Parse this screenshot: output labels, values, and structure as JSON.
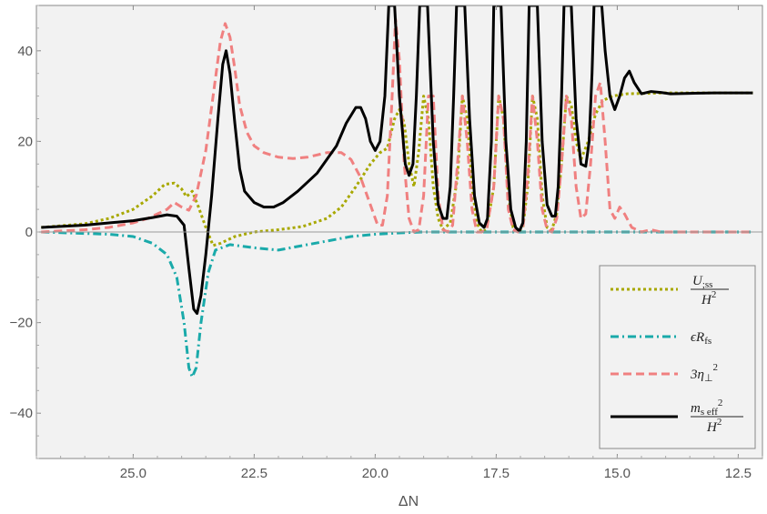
{
  "chart_data": {
    "type": "line",
    "xlabel": "ΔN",
    "ylabel": "",
    "xlim": [
      27.0,
      12.0
    ],
    "ylim": [
      -50,
      50
    ],
    "x_reversed": true,
    "xticks": [
      25.0,
      22.5,
      20.0,
      17.5,
      15.0,
      12.5
    ],
    "xtick_labels": [
      "25.0",
      "22.5",
      "20.0",
      "17.5",
      "15.0",
      "12.5"
    ],
    "yticks": [
      -40,
      -20,
      0,
      20,
      40
    ],
    "ytick_labels": [
      "−40",
      "−20",
      "0",
      "20",
      "40"
    ],
    "legend_position": "bottom-right",
    "background": "#f2f2f2",
    "series": [
      {
        "name": "U;ss / H^2",
        "legend": {
          "num": "U",
          "num_sub": ";ss",
          "den": "H",
          "den_sup": "2"
        },
        "color": "#a8a800",
        "dash": "dotted",
        "points": [
          [
            26.9,
            1.0
          ],
          [
            26.0,
            1.8
          ],
          [
            25.5,
            3.0
          ],
          [
            25.0,
            5.0
          ],
          [
            24.6,
            8.0
          ],
          [
            24.35,
            10.5
          ],
          [
            24.15,
            10.8
          ],
          [
            24.0,
            9.5
          ],
          [
            23.9,
            7.8
          ],
          [
            23.78,
            9.0
          ],
          [
            23.65,
            5.5
          ],
          [
            23.5,
            1.0
          ],
          [
            23.35,
            -3.0
          ],
          [
            23.2,
            -2.5
          ],
          [
            22.9,
            -1.0
          ],
          [
            22.5,
            0.0
          ],
          [
            22.0,
            0.5
          ],
          [
            21.5,
            1.2
          ],
          [
            21.0,
            3.0
          ],
          [
            20.7,
            5.5
          ],
          [
            20.4,
            10.0
          ],
          [
            20.1,
            15.0
          ],
          [
            19.9,
            17.5
          ],
          [
            19.75,
            18.5
          ],
          [
            19.6,
            25.0
          ],
          [
            19.5,
            27.0
          ],
          [
            19.4,
            24.0
          ],
          [
            19.3,
            15.0
          ],
          [
            19.2,
            10.0
          ],
          [
            19.1,
            18.0
          ],
          [
            19.0,
            30.0
          ],
          [
            18.9,
            25.0
          ],
          [
            18.8,
            10.0
          ],
          [
            18.7,
            3.0
          ],
          [
            18.6,
            0.5
          ],
          [
            18.45,
            2.0
          ],
          [
            18.3,
            12.0
          ],
          [
            18.2,
            30.0
          ],
          [
            18.1,
            25.0
          ],
          [
            18.0,
            10.0
          ],
          [
            17.9,
            2.0
          ],
          [
            17.8,
            0.0
          ],
          [
            17.7,
            0.5
          ],
          [
            17.55,
            10.0
          ],
          [
            17.45,
            30.0
          ],
          [
            17.35,
            25.0
          ],
          [
            17.25,
            8.0
          ],
          [
            17.15,
            1.0
          ],
          [
            17.05,
            0.0
          ],
          [
            16.95,
            1.0
          ],
          [
            16.85,
            10.0
          ],
          [
            16.75,
            30.0
          ],
          [
            16.65,
            25.0
          ],
          [
            16.55,
            8.0
          ],
          [
            16.45,
            1.0
          ],
          [
            16.35,
            0.5
          ],
          [
            16.25,
            4.0
          ],
          [
            16.15,
            15.0
          ],
          [
            16.05,
            30.0
          ],
          [
            15.95,
            28.0
          ],
          [
            15.85,
            20.0
          ],
          [
            15.75,
            16.0
          ],
          [
            15.6,
            20.0
          ],
          [
            15.45,
            26.0
          ],
          [
            15.3,
            29.0
          ],
          [
            15.1,
            30.0
          ],
          [
            14.8,
            30.5
          ],
          [
            14.4,
            30.6
          ],
          [
            14.0,
            30.7
          ],
          [
            13.5,
            30.7
          ],
          [
            13.0,
            30.7
          ],
          [
            12.2,
            30.7
          ]
        ]
      },
      {
        "name": "ϵRfs",
        "legend": {
          "main": "ϵR",
          "sub": "fs"
        },
        "color": "#1aaaaa",
        "dash": "dashdot",
        "points": [
          [
            26.9,
            0.0
          ],
          [
            25.5,
            -0.5
          ],
          [
            25.0,
            -1.0
          ],
          [
            24.6,
            -2.5
          ],
          [
            24.3,
            -5.0
          ],
          [
            24.1,
            -10.0
          ],
          [
            23.95,
            -20.0
          ],
          [
            23.85,
            -30.0
          ],
          [
            23.78,
            -32.0
          ],
          [
            23.7,
            -30.0
          ],
          [
            23.6,
            -20.0
          ],
          [
            23.45,
            -9.0
          ],
          [
            23.3,
            -4.0
          ],
          [
            23.0,
            -2.8
          ],
          [
            22.5,
            -3.5
          ],
          [
            22.0,
            -4.0
          ],
          [
            21.5,
            -3.0
          ],
          [
            21.0,
            -2.0
          ],
          [
            20.5,
            -1.0
          ],
          [
            20.0,
            -0.5
          ],
          [
            19.5,
            -0.2
          ],
          [
            19.0,
            0.0
          ],
          [
            12.2,
            0.0
          ]
        ]
      },
      {
        "name": "3η⊥^2",
        "legend": {
          "main": "3η",
          "sub": "⊥",
          "sup": "2"
        },
        "color": "#f08080",
        "dash": "dashed",
        "points": [
          [
            26.9,
            0.0
          ],
          [
            26.0,
            0.5
          ],
          [
            25.5,
            1.0
          ],
          [
            25.0,
            2.0
          ],
          [
            24.7,
            3.0
          ],
          [
            24.5,
            4.0
          ],
          [
            24.3,
            5.0
          ],
          [
            24.15,
            6.5
          ],
          [
            24.0,
            5.5
          ],
          [
            23.85,
            4.8
          ],
          [
            23.7,
            8.0
          ],
          [
            23.5,
            18.0
          ],
          [
            23.35,
            30.0
          ],
          [
            23.2,
            42.0
          ],
          [
            23.1,
            46.0
          ],
          [
            23.0,
            43.0
          ],
          [
            22.9,
            36.0
          ],
          [
            22.8,
            28.0
          ],
          [
            22.65,
            22.0
          ],
          [
            22.5,
            19.0
          ],
          [
            22.3,
            17.5
          ],
          [
            22.0,
            16.5
          ],
          [
            21.7,
            16.2
          ],
          [
            21.4,
            16.5
          ],
          [
            21.0,
            17.5
          ],
          [
            20.7,
            17.5
          ],
          [
            20.5,
            16.0
          ],
          [
            20.3,
            12.0
          ],
          [
            20.1,
            6.0
          ],
          [
            19.95,
            1.5
          ],
          [
            19.85,
            1.5
          ],
          [
            19.75,
            8.0
          ],
          [
            19.65,
            30.0
          ],
          [
            19.58,
            47.0
          ],
          [
            19.5,
            38.0
          ],
          [
            19.4,
            15.0
          ],
          [
            19.3,
            3.0
          ],
          [
            19.2,
            0.0
          ],
          [
            19.1,
            0.5
          ],
          [
            19.0,
            8.0
          ],
          [
            18.9,
            30.0
          ],
          [
            18.8,
            30.0
          ],
          [
            18.7,
            8.0
          ],
          [
            18.6,
            0.5
          ],
          [
            18.5,
            0.0
          ],
          [
            18.4,
            1.5
          ],
          [
            18.3,
            15.0
          ],
          [
            18.2,
            30.0
          ],
          [
            18.1,
            20.0
          ],
          [
            18.0,
            5.0
          ],
          [
            17.9,
            0.0
          ],
          [
            17.8,
            0.0
          ],
          [
            17.7,
            0.5
          ],
          [
            17.55,
            10.0
          ],
          [
            17.45,
            30.0
          ],
          [
            17.35,
            25.0
          ],
          [
            17.25,
            5.0
          ],
          [
            17.15,
            0.5
          ],
          [
            17.05,
            0.0
          ],
          [
            16.95,
            1.0
          ],
          [
            16.85,
            12.0
          ],
          [
            16.75,
            30.0
          ],
          [
            16.65,
            20.0
          ],
          [
            16.55,
            5.0
          ],
          [
            16.45,
            0.5
          ],
          [
            16.35,
            0.0
          ],
          [
            16.25,
            3.0
          ],
          [
            16.15,
            15.0
          ],
          [
            16.05,
            30.0
          ],
          [
            15.95,
            25.0
          ],
          [
            15.85,
            10.0
          ],
          [
            15.75,
            3.0
          ],
          [
            15.65,
            4.0
          ],
          [
            15.55,
            15.0
          ],
          [
            15.45,
            30.0
          ],
          [
            15.35,
            33.0
          ],
          [
            15.25,
            20.0
          ],
          [
            15.15,
            5.0
          ],
          [
            15.05,
            3.0
          ],
          [
            14.95,
            5.5
          ],
          [
            14.85,
            4.0
          ],
          [
            14.7,
            1.0
          ],
          [
            14.5,
            0.0
          ],
          [
            14.3,
            0.5
          ],
          [
            14.1,
            0.0
          ],
          [
            12.2,
            0.0
          ]
        ]
      },
      {
        "name": "ms eff^2 / H^2",
        "legend": {
          "num": "m",
          "num_sub": "s eff",
          "num_sup": "2",
          "den": "H",
          "den_sup": "2"
        },
        "color": "#000000",
        "dash": "solid",
        "points": [
          [
            26.9,
            1.0
          ],
          [
            26.0,
            1.5
          ],
          [
            25.5,
            2.0
          ],
          [
            25.0,
            2.5
          ],
          [
            24.6,
            3.2
          ],
          [
            24.3,
            3.8
          ],
          [
            24.1,
            3.5
          ],
          [
            23.95,
            1.5
          ],
          [
            23.85,
            -8.0
          ],
          [
            23.75,
            -17.0
          ],
          [
            23.68,
            -18.0
          ],
          [
            23.6,
            -14.0
          ],
          [
            23.5,
            -5.0
          ],
          [
            23.38,
            8.0
          ],
          [
            23.25,
            25.0
          ],
          [
            23.15,
            37.0
          ],
          [
            23.08,
            40.0
          ],
          [
            23.0,
            35.0
          ],
          [
            22.9,
            24.0
          ],
          [
            22.8,
            14.0
          ],
          [
            22.7,
            9.0
          ],
          [
            22.5,
            6.5
          ],
          [
            22.3,
            5.5
          ],
          [
            22.1,
            5.5
          ],
          [
            21.9,
            6.5
          ],
          [
            21.6,
            9.0
          ],
          [
            21.2,
            13.0
          ],
          [
            20.8,
            19.0
          ],
          [
            20.6,
            24.0
          ],
          [
            20.4,
            27.5
          ],
          [
            20.3,
            27.5
          ],
          [
            20.2,
            25.0
          ],
          [
            20.1,
            20.0
          ],
          [
            20.0,
            18.0
          ],
          [
            19.9,
            20.0
          ],
          [
            19.8,
            30.0
          ],
          [
            19.72,
            50.0
          ],
          [
            19.6,
            50.0
          ],
          [
            19.5,
            30.0
          ],
          [
            19.38,
            15.0
          ],
          [
            19.3,
            12.5
          ],
          [
            19.22,
            15.0
          ],
          [
            19.15,
            30.0
          ],
          [
            19.08,
            50.0
          ],
          [
            18.92,
            50.0
          ],
          [
            18.8,
            20.0
          ],
          [
            18.7,
            6.0
          ],
          [
            18.6,
            3.0
          ],
          [
            18.52,
            3.0
          ],
          [
            18.45,
            10.0
          ],
          [
            18.38,
            30.0
          ],
          [
            18.32,
            50.0
          ],
          [
            18.15,
            50.0
          ],
          [
            18.05,
            25.0
          ],
          [
            17.95,
            8.0
          ],
          [
            17.85,
            2.0
          ],
          [
            17.75,
            1.0
          ],
          [
            17.68,
            3.0
          ],
          [
            17.6,
            20.0
          ],
          [
            17.55,
            50.0
          ],
          [
            17.4,
            50.0
          ],
          [
            17.3,
            20.0
          ],
          [
            17.2,
            5.0
          ],
          [
            17.1,
            1.0
          ],
          [
            17.02,
            0.2
          ],
          [
            16.95,
            2.0
          ],
          [
            16.88,
            20.0
          ],
          [
            16.82,
            50.0
          ],
          [
            16.65,
            50.0
          ],
          [
            16.55,
            20.0
          ],
          [
            16.45,
            6.0
          ],
          [
            16.35,
            3.5
          ],
          [
            16.28,
            3.5
          ],
          [
            16.22,
            10.0
          ],
          [
            16.15,
            30.0
          ],
          [
            16.1,
            50.0
          ],
          [
            15.95,
            50.0
          ],
          [
            15.85,
            25.0
          ],
          [
            15.75,
            15.0
          ],
          [
            15.65,
            14.5
          ],
          [
            15.58,
            20.0
          ],
          [
            15.52,
            35.0
          ],
          [
            15.48,
            50.0
          ],
          [
            15.32,
            50.0
          ],
          [
            15.25,
            40.0
          ],
          [
            15.15,
            30.0
          ],
          [
            15.05,
            27.0
          ],
          [
            14.95,
            30.0
          ],
          [
            14.85,
            34.0
          ],
          [
            14.75,
            35.5
          ],
          [
            14.65,
            33.0
          ],
          [
            14.5,
            30.5
          ],
          [
            14.3,
            31.0
          ],
          [
            14.1,
            30.8
          ],
          [
            13.9,
            30.5
          ],
          [
            13.5,
            30.6
          ],
          [
            13.0,
            30.7
          ],
          [
            12.2,
            30.7
          ]
        ]
      }
    ]
  }
}
